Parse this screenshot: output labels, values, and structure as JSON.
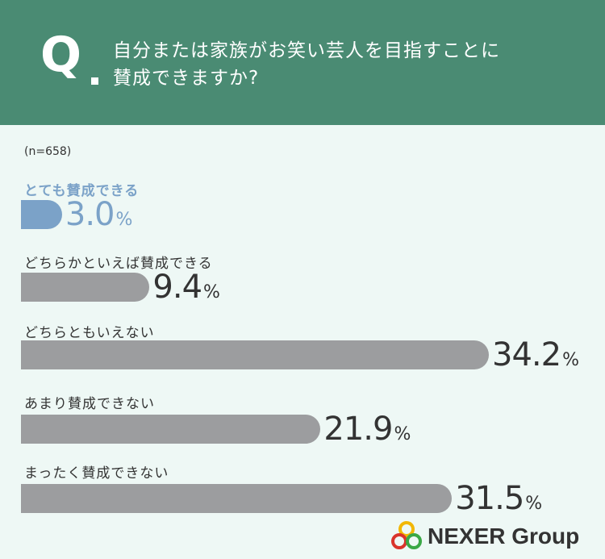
{
  "header": {
    "q_mark": "Q",
    "question_line1": "自分または家族がお笑い芸人を目指すことに",
    "question_line2": "賛成できますか?"
  },
  "sample_size": "(n=658)",
  "chart_data": {
    "type": "bar",
    "orientation": "horizontal",
    "categories": [
      "とても賛成できる",
      "どちらかといえば賛成できる",
      "どちらともいえない",
      "あまり賛成できない",
      "まったく賛成できない"
    ],
    "values": [
      3.0,
      9.4,
      34.2,
      21.9,
      31.5
    ],
    "value_labels": [
      "3.0",
      "9.4",
      "34.2",
      "21.9",
      "31.5"
    ],
    "unit": "%",
    "highlight_index": 0,
    "colors": {
      "highlight": "#7ba2c8",
      "default": "#9c9d9f"
    }
  },
  "colors": {
    "header_bg": "#4a8b73",
    "page_bg": "#eef8f5",
    "text": "#333333"
  },
  "logo": {
    "text": "NEXER Group",
    "icon": "nexer-rings-logo"
  }
}
